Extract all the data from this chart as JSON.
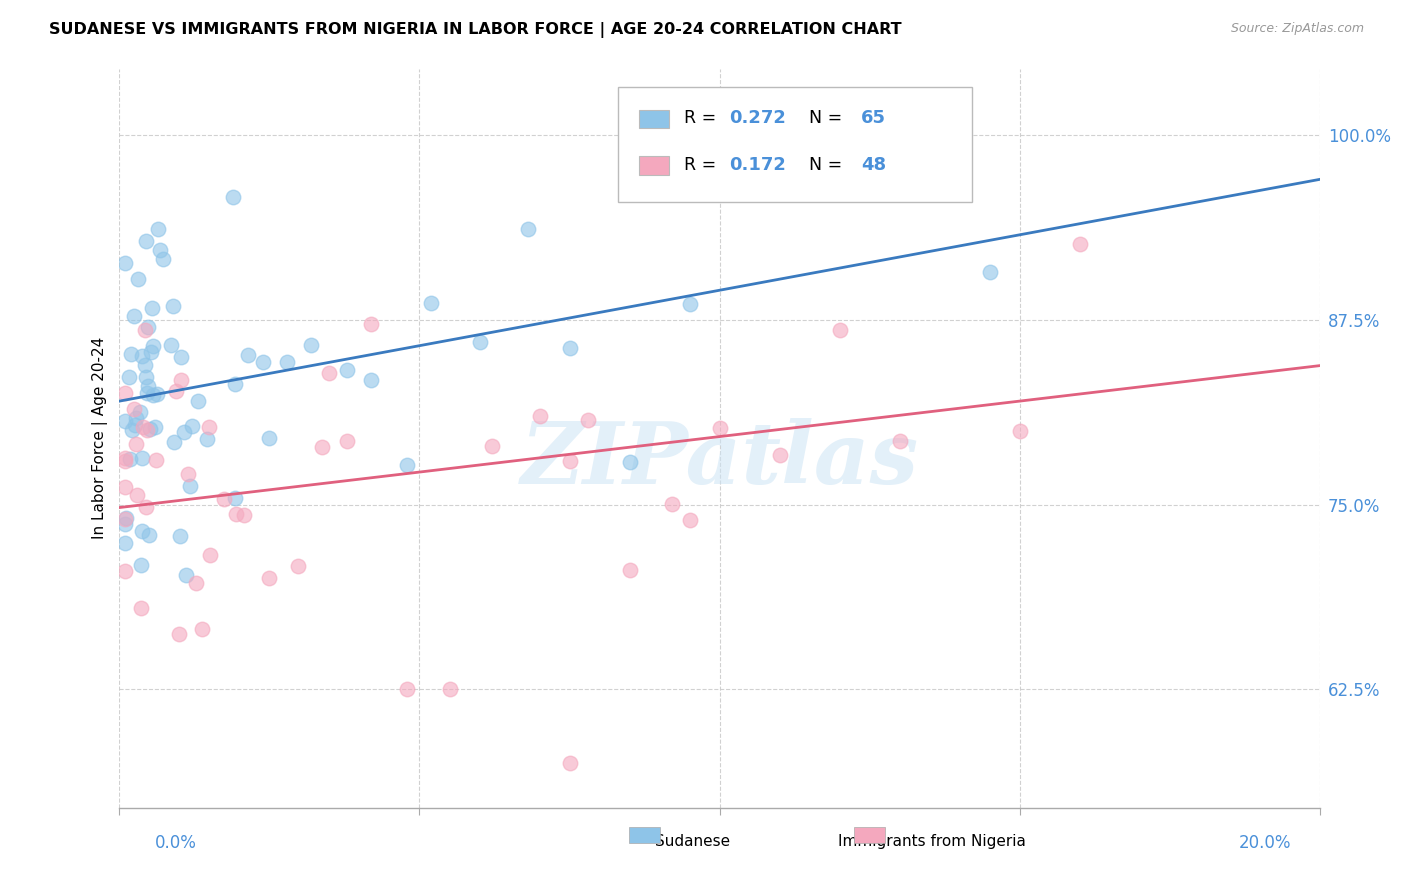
{
  "title": "SUDANESE VS IMMIGRANTS FROM NIGERIA IN LABOR FORCE | AGE 20-24 CORRELATION CHART",
  "source": "Source: ZipAtlas.com",
  "ylabel": "In Labor Force | Age 20-24",
  "y_ticks": [
    0.625,
    0.75,
    0.875,
    1.0
  ],
  "y_tick_labels": [
    "62.5%",
    "75.0%",
    "87.5%",
    "100.0%"
  ],
  "xlim": [
    0.0,
    0.2
  ],
  "ylim": [
    0.545,
    1.045
  ],
  "blue_intercept": 0.82,
  "blue_slope": 0.75,
  "pink_intercept": 0.748,
  "pink_slope": 0.48,
  "watermark": "ZIPatlas",
  "blue_color": "#8ec4e8",
  "pink_color": "#f4a8be",
  "blue_line_color": "#3a7abf",
  "pink_line_color": "#e0607e",
  "blue_dot_color": "#8ec4e8",
  "pink_dot_color": "#f4a8be",
  "legend_r1_val": "0.272",
  "legend_n1_val": "65",
  "legend_r2_val": "0.172",
  "legend_n2_val": "48",
  "tick_color": "#4a90d9",
  "grid_color": "#cccccc"
}
